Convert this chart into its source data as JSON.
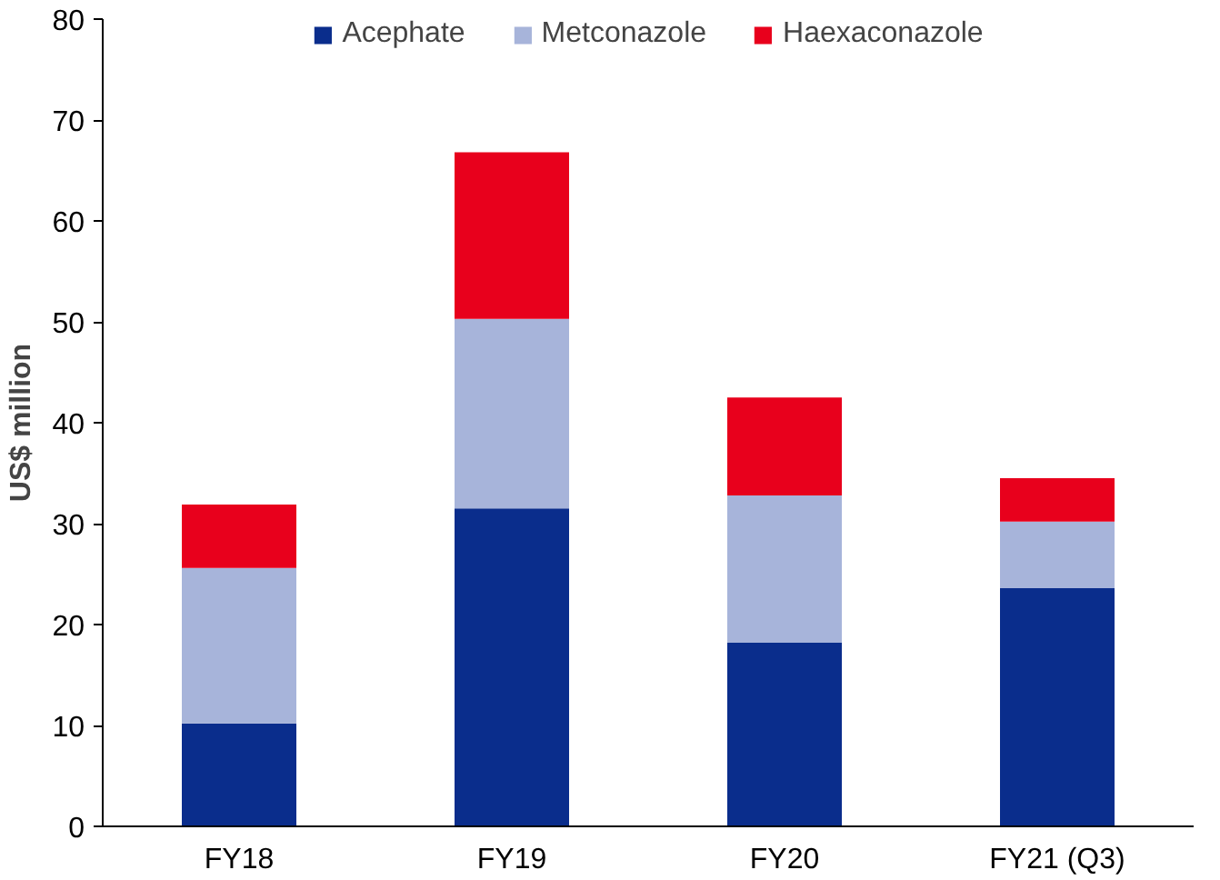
{
  "chart_data": {
    "type": "bar",
    "stacked": true,
    "ylabel": "US$ million",
    "categories": [
      "FY18",
      "FY19",
      "FY20",
      "FY21 (Q3)"
    ],
    "series": [
      {
        "name": "Acephate",
        "color": "#0a2d8c",
        "values": [
          10.2,
          31.5,
          18.2,
          23.6
        ]
      },
      {
        "name": "Metconazole",
        "color": "#a7b4da",
        "values": [
          15.4,
          18.8,
          14.6,
          6.6
        ]
      },
      {
        "name": "Haexaconazole",
        "color": "#e8001c",
        "values": [
          6.3,
          16.5,
          9.7,
          4.3
        ]
      }
    ],
    "ylim": [
      0,
      80
    ],
    "yticks": [
      0,
      10,
      20,
      30,
      40,
      50,
      60,
      70,
      80
    ],
    "grid": false,
    "legend": "top"
  }
}
